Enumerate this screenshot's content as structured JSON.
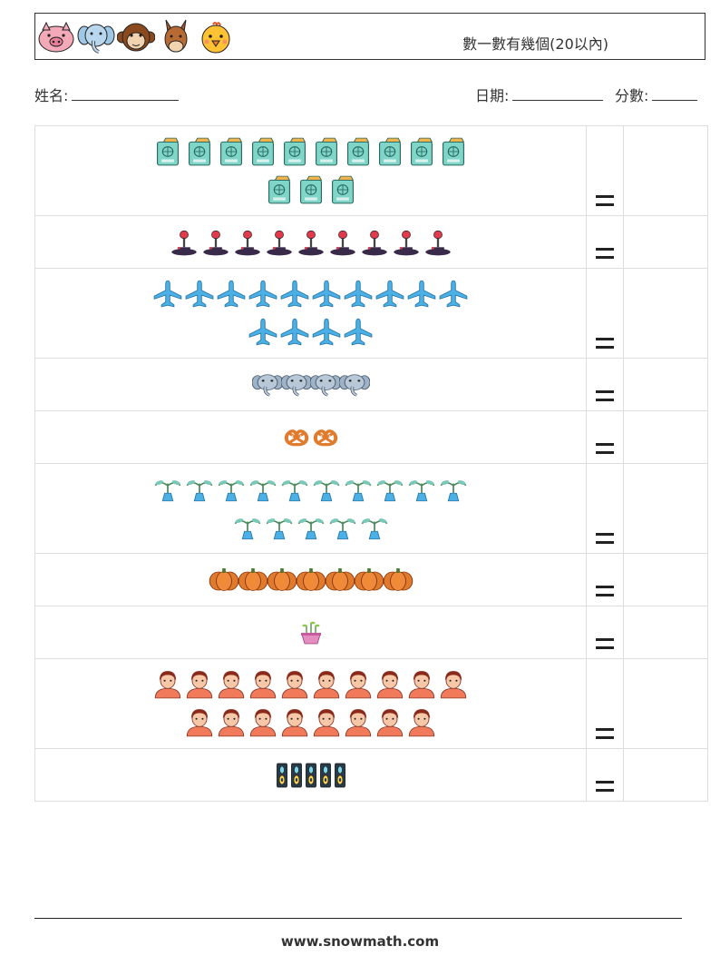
{
  "header": {
    "title": "數一數有幾個(20以內)",
    "animals": [
      "pig-icon",
      "elephant-icon",
      "monkey-icon",
      "donkey-icon",
      "chick-icon"
    ]
  },
  "info": {
    "name_label": "姓名:",
    "date_label": "日期:",
    "score_label": "分數:"
  },
  "rows": [
    {
      "icon": "passport-icon",
      "count": 13,
      "per_row": 10,
      "equals": "="
    },
    {
      "icon": "joystick-icon",
      "count": 9,
      "per_row": 10,
      "equals": "="
    },
    {
      "icon": "airplane-icon",
      "count": 14,
      "per_row": 10,
      "equals": "="
    },
    {
      "icon": "elephant-icon",
      "count": 4,
      "per_row": 10,
      "equals": "="
    },
    {
      "icon": "pretzel-icon",
      "count": 2,
      "per_row": 10,
      "equals": "="
    },
    {
      "icon": "sprout-icon",
      "count": 15,
      "per_row": 10,
      "equals": "="
    },
    {
      "icon": "pumpkin-icon",
      "count": 7,
      "per_row": 10,
      "equals": "="
    },
    {
      "icon": "plant-pot-icon",
      "count": 1,
      "per_row": 10,
      "equals": "="
    },
    {
      "icon": "person-icon",
      "count": 18,
      "per_row": 10,
      "equals": "="
    },
    {
      "icon": "speaker-icon",
      "count": 5,
      "per_row": 10,
      "equals": "="
    }
  ],
  "colors": {
    "passport": "#7fd6c8",
    "joystick": "#3a2a4a",
    "airplane": "#4ab0e6",
    "elephant": "#9fb3c8",
    "pretzel": "#e07a2c",
    "sprout": "#4ab0e6",
    "pumpkin": "#e07a2c",
    "plant_pot": "#e58cc0",
    "person": "#f07a5a",
    "speaker": "#2a3a4a"
  },
  "footer": {
    "website": "www.snowmath.com"
  }
}
